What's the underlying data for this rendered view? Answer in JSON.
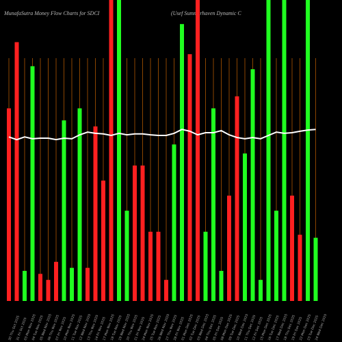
{
  "chart_data": {
    "type": "bar",
    "title": "MunafaSutra  Money Flow  Charts for SDCI",
    "subtitle": "(Usef Summerhaven Dynamic C",
    "categories": [
      "30 Thu Oct 2025",
      "31 Fri Oct 2025",
      "03 Mon Nov 2025",
      "04 Tue Nov 2025",
      "05 Wed Nov 2025",
      "06 Thu Nov 2025",
      "07 Fri Nov 2025",
      "10 Mon Nov 2025",
      "11 Tue Nov 2025",
      "12 Wed Nov 2025",
      "13 Thu Nov 2025",
      "14 Fri Nov 2025",
      "17 Mon Nov 2025",
      "18 Tue Nov 2025",
      "19 Wed Nov 2025",
      "20 Thu Nov 2025",
      "21 Fri Nov 2025",
      "24 Mon Nov 2025",
      "25 Tue Nov 2025",
      "26 Wed Nov 2025",
      "27 Thu Nov 2025",
      "28 Fri Nov 2025",
      "01 Mon Dec 2025",
      "02 Tue Dec 2025",
      "03 Wed Dec 2025",
      "04 Thu Dec 2025",
      "05 Fri Dec 2025",
      "08 Mon Dec 2025",
      "09 Tue Dec 2025",
      "10 Wed Dec 2025",
      "11 Thu Dec 2025",
      "12 Fri Dec 2025",
      "15 Mon Dec 2025",
      "16 Tue Dec 2025",
      "17 Wed Dec 2025",
      "18 Thu Dec 2025",
      "19 Fri Dec 2025",
      "22 Mon Dec 2025",
      "23 Tue Dec 2025",
      "24 Wed Dec 2025"
    ],
    "values": [
      64,
      86,
      10,
      78,
      9,
      7,
      13,
      60,
      11,
      64,
      11,
      58,
      40,
      100,
      100,
      30,
      45,
      45,
      23,
      23,
      7,
      52,
      92,
      82,
      100,
      23,
      64,
      10,
      35,
      68,
      49,
      77,
      7,
      100,
      30,
      100,
      35,
      22,
      100,
      21
    ],
    "bar_colors": [
      "#ff2020",
      "#ff2020",
      "#20ff20",
      "#20ff20",
      "#ff2020",
      "#ff2020",
      "#ff2020",
      "#20ff20",
      "#20ff20",
      "#20ff20",
      "#ff2020",
      "#ff2020",
      "#ff2020",
      "#ff2020",
      "#20ff20",
      "#20ff20",
      "#ff2020",
      "#ff2020",
      "#ff2020",
      "#ff2020",
      "#ff2020",
      "#20ff20",
      "#20ff20",
      "#ff2020",
      "#ff2020",
      "#20ff20",
      "#20ff20",
      "#20ff20",
      "#ff2020",
      "#ff2020",
      "#20ff20",
      "#20ff20",
      "#20ff20",
      "#20ff20",
      "#20ff20",
      "#20ff20",
      "#ff2020",
      "#ff2020",
      "#20ff20",
      "#20ff20"
    ],
    "line": {
      "color": "#ffffff",
      "values": [
        54.5,
        53.6,
        54.5,
        53.9,
        54.1,
        54.1,
        53.6,
        54.1,
        53.9,
        55.2,
        56.1,
        55.7,
        55.5,
        55,
        55.7,
        55.2,
        55.5,
        55.5,
        55.2,
        55,
        55,
        55.7,
        57,
        56.4,
        55.2,
        55.9,
        55.9,
        56.6,
        55.2,
        54.3,
        53.9,
        54.3,
        53.9,
        55,
        56.1,
        55.7,
        55.9,
        56.4,
        56.8,
        57
      ]
    },
    "ylim": [
      0,
      100
    ],
    "guide_color": "#8b4500"
  }
}
